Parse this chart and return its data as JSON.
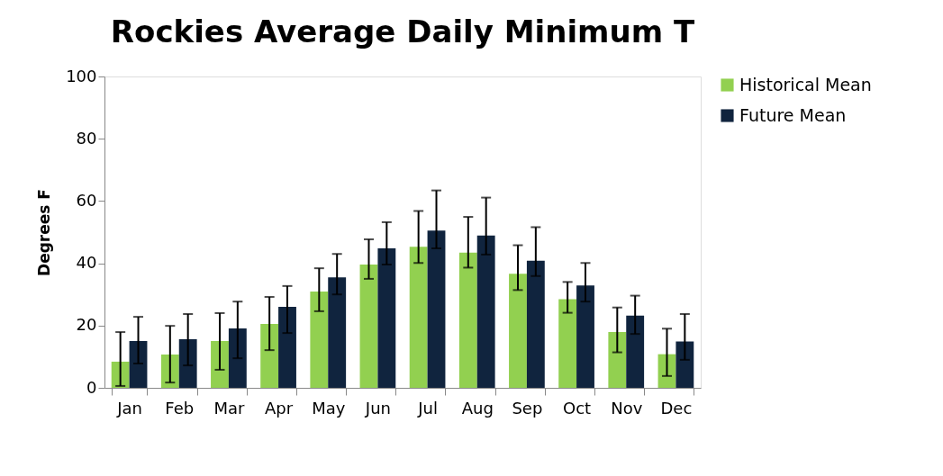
{
  "chart_data": {
    "type": "bar",
    "title": "Rockies Average Daily Minimum T",
    "ylabel": "Degrees F",
    "categories": [
      "Jan",
      "Feb",
      "Mar",
      "Apr",
      "May",
      "Jun",
      "Jul",
      "Aug",
      "Sep",
      "Oct",
      "Nov",
      "Dec"
    ],
    "series": [
      {
        "name": "Historical Mean",
        "color": "#92d050",
        "values": [
          8.4,
          10.7,
          15,
          20.5,
          30.9,
          39.6,
          45.3,
          43.4,
          36.6,
          28.5,
          17.9,
          10.8
        ],
        "errors": [
          [
            0.6,
            17.9
          ],
          [
            1.7,
            19.9
          ],
          [
            5.8,
            24
          ],
          [
            12.1,
            29.2
          ],
          [
            24.6,
            38.4
          ],
          [
            35,
            47.7
          ],
          [
            40.1,
            56.8
          ],
          [
            38.6,
            54.9
          ],
          [
            31.4,
            45.8
          ],
          [
            24.1,
            34
          ],
          [
            11.4,
            25.8
          ],
          [
            3.8,
            19
          ]
        ]
      },
      {
        "name": "Future Mean",
        "color": "#10243e",
        "values": [
          15,
          15.6,
          19.1,
          26,
          35.5,
          44.8,
          50.5,
          48.9,
          40.8,
          32.9,
          23.2,
          14.9
        ],
        "errors": [
          [
            7.8,
            22.8
          ],
          [
            7.2,
            23.7
          ],
          [
            9.5,
            27.7
          ],
          [
            17.6,
            32.7
          ],
          [
            30,
            43
          ],
          [
            39.6,
            53.2
          ],
          [
            44.8,
            63.4
          ],
          [
            42.8,
            61.1
          ],
          [
            35.9,
            51.6
          ],
          [
            27.7,
            40.1
          ],
          [
            17.3,
            29.6
          ],
          [
            9,
            23.7
          ]
        ]
      }
    ],
    "ylim": [
      0,
      100
    ],
    "yticks": [
      0,
      20,
      40,
      60,
      80,
      100
    ],
    "grid": false,
    "legend": "right"
  }
}
